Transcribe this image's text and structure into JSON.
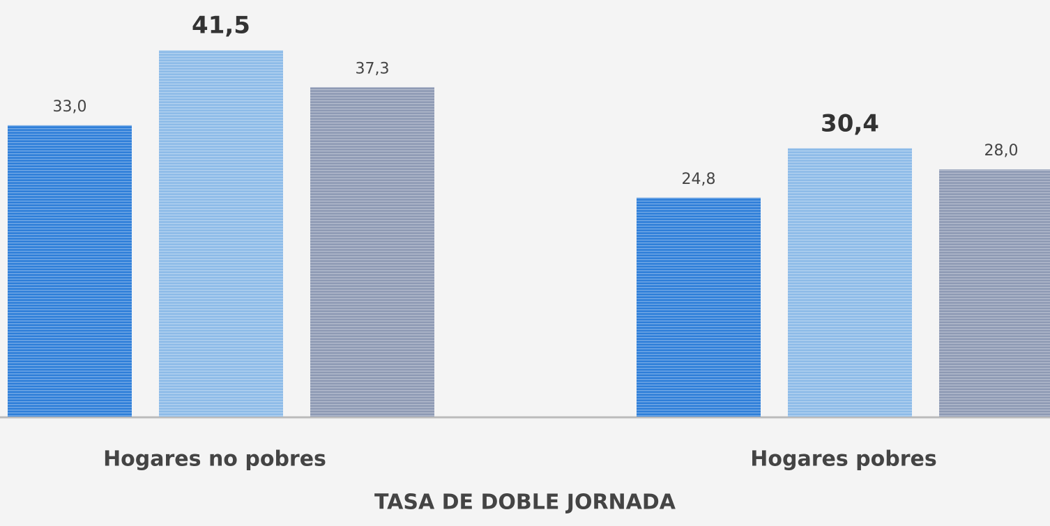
{
  "chart_data": {
    "type": "bar",
    "title": "TASA DE DOBLE JORNADA",
    "categories": [
      "Hogares no pobres",
      "Hogares pobres"
    ],
    "series": [
      {
        "color": "#2f7fd9",
        "values": [
          33.0,
          24.8
        ],
        "value_labels": [
          "33,0",
          "24,8"
        ]
      },
      {
        "color": "#8dbbe8",
        "values": [
          41.5,
          30.4
        ],
        "value_labels": [
          "41,5",
          "30,4"
        ],
        "label_weight": "bold"
      },
      {
        "color": "#8e9ab4",
        "values": [
          37.3,
          28.0
        ],
        "value_labels": [
          "37,3",
          "28,0"
        ]
      }
    ]
  }
}
